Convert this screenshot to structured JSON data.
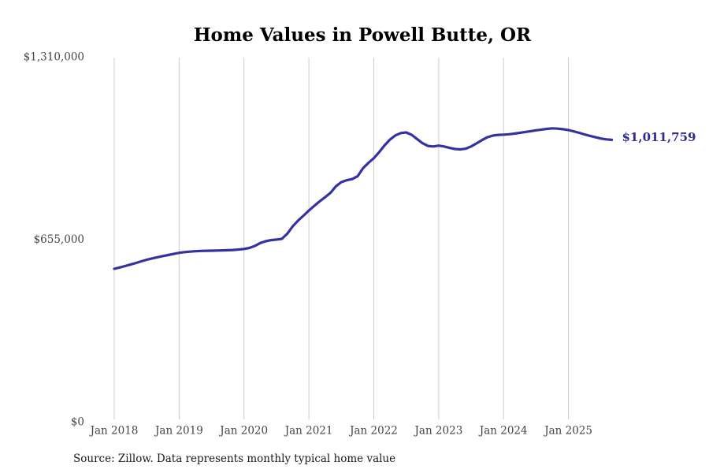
{
  "chart": {
    "title": "Home Values in Powell Butte, OR",
    "source": "Source: Zillow. Data represents monthly typical home value",
    "end_label": "$1,011,759"
  },
  "chart_data": {
    "type": "line",
    "title": "Home Values in Powell Butte, OR",
    "xlabel": "",
    "ylabel": "",
    "ylim": [
      0,
      1310000
    ],
    "grid": "vertical-only",
    "grid_color": "#cccccc",
    "line_color": "#3432a0",
    "end_label": "$1,011,759",
    "end_label_color": "#2d2d8f",
    "final_value": 1011759,
    "source": "Source: Zillow. Data represents monthly typical home value",
    "legend": "none",
    "y_ticks": [
      {
        "value": 0,
        "label": "$0"
      },
      {
        "value": 655000,
        "label": "$655,000"
      },
      {
        "value": 1310000,
        "label": "$1,310,000"
      }
    ],
    "x_tick_labels": [
      "Jan 2018",
      "Jan 2019",
      "Jan 2020",
      "Jan 2021",
      "Jan 2022",
      "Jan 2023",
      "Jan 2024",
      "Jan 2025"
    ],
    "x_months": [
      "2018-01",
      "2018-02",
      "2018-03",
      "2018-04",
      "2018-05",
      "2018-06",
      "2018-07",
      "2018-08",
      "2018-09",
      "2018-10",
      "2018-11",
      "2018-12",
      "2019-01",
      "2019-02",
      "2019-03",
      "2019-04",
      "2019-05",
      "2019-06",
      "2019-07",
      "2019-08",
      "2019-09",
      "2019-10",
      "2019-11",
      "2019-12",
      "2020-01",
      "2020-02",
      "2020-03",
      "2020-04",
      "2020-05",
      "2020-06",
      "2020-07",
      "2020-08",
      "2020-09",
      "2020-10",
      "2020-11",
      "2020-12",
      "2021-01",
      "2021-02",
      "2021-03",
      "2021-04",
      "2021-05",
      "2021-06",
      "2021-07",
      "2021-08",
      "2021-09",
      "2021-10",
      "2021-11",
      "2021-12",
      "2022-01",
      "2022-02",
      "2022-03",
      "2022-04",
      "2022-05",
      "2022-06",
      "2022-07",
      "2022-08",
      "2022-09",
      "2022-10",
      "2022-11",
      "2022-12",
      "2023-01",
      "2023-02",
      "2023-03",
      "2023-04",
      "2023-05",
      "2023-06",
      "2023-07",
      "2023-08",
      "2023-09",
      "2023-10",
      "2023-11",
      "2023-12",
      "2024-01",
      "2024-02",
      "2024-03",
      "2024-04",
      "2024-05",
      "2024-06",
      "2024-07",
      "2024-08",
      "2024-09",
      "2024-10",
      "2024-11",
      "2024-12",
      "2025-01",
      "2025-02",
      "2025-03",
      "2025-04",
      "2025-05",
      "2025-06",
      "2025-07",
      "2025-08",
      "2025-09"
    ],
    "values": [
      549000,
      553600,
      558800,
      564300,
      569900,
      575800,
      581300,
      586200,
      590600,
      594600,
      598300,
      602500,
      606300,
      608800,
      610700,
      612100,
      613100,
      613700,
      614100,
      614500,
      615000,
      615600,
      616500,
      618100,
      620200,
      624000,
      631000,
      641500,
      648000,
      652000,
      654000,
      656500,
      675000,
      701000,
      722000,
      740000,
      758000,
      775000,
      791000,
      806000,
      822000,
      845000,
      860000,
      867000,
      871000,
      881000,
      910000,
      929000,
      946000,
      968000,
      992000,
      1013000,
      1028000,
      1036000,
      1038500,
      1030000,
      1015000,
      1000000,
      990000,
      988000,
      991000,
      988000,
      983000,
      979000,
      977500,
      980000,
      988000,
      999000,
      1011000,
      1021000,
      1027000,
      1029500,
      1030500,
      1032000,
      1034000,
      1037000,
      1040000,
      1043000,
      1046000,
      1048500,
      1051000,
      1053000,
      1052000,
      1050000,
      1047000,
      1042000,
      1037000,
      1031000,
      1026000,
      1021000,
      1016500,
      1013500,
      1011759
    ]
  }
}
